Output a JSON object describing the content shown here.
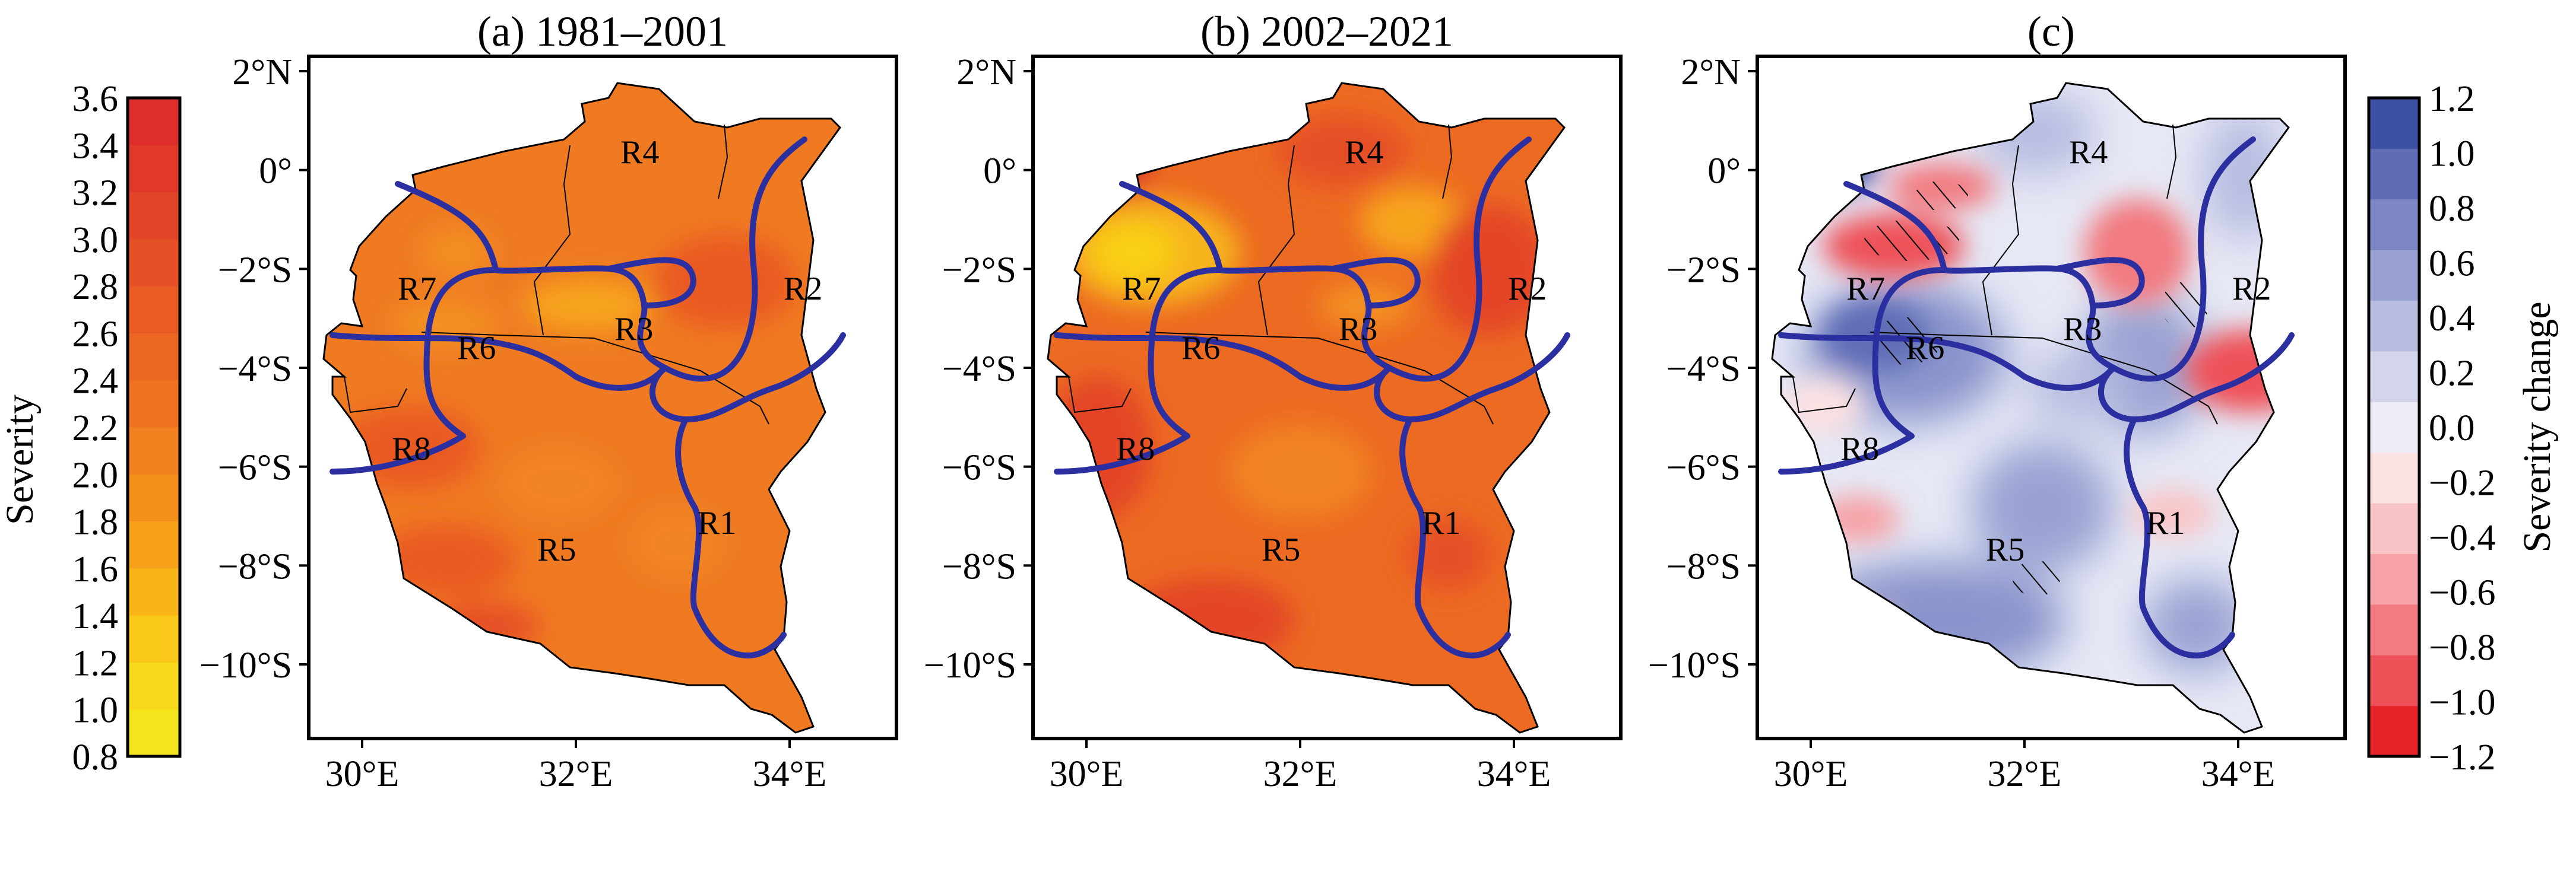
{
  "panels": [
    {
      "id": "a",
      "title": "(a) 1981–2001",
      "scale": "severity"
    },
    {
      "id": "b",
      "title": "(b) 2002–2021",
      "scale": "severity"
    },
    {
      "id": "c",
      "title": "(c)",
      "scale": "change"
    }
  ],
  "axes": {
    "lat_labels": [
      "2°N",
      "0°",
      "−2°S",
      "−4°S",
      "−6°S",
      "−8°S",
      "−10°S"
    ],
    "lat_values": [
      2,
      0,
      -2,
      -4,
      -6,
      -8,
      -10
    ],
    "lon_labels": [
      "30°E",
      "32°E",
      "34°E"
    ],
    "lon_values": [
      30,
      32,
      34
    ],
    "lon_range": [
      29.5,
      35.0
    ],
    "lat_range": [
      -11.5,
      2.3
    ]
  },
  "regions": [
    "R1",
    "R2",
    "R3",
    "R4",
    "R5",
    "R6",
    "R7",
    "R8"
  ],
  "colorbar_left": {
    "label": "Severity",
    "ticks": [
      "3.6",
      "3.4",
      "3.2",
      "3.0",
      "2.8",
      "2.6",
      "2.4",
      "2.2",
      "2.0",
      "1.8",
      "1.6",
      "1.4",
      "1.2",
      "1.0",
      "0.8"
    ],
    "colors": [
      "#f2e51c",
      "#f7d81a",
      "#f9c818",
      "#f9b418",
      "#f7a01a",
      "#f48f1c",
      "#f2801e",
      "#ef7220",
      "#ec6722",
      "#e95c24",
      "#e65026",
      "#e34528",
      "#e0392a",
      "#dd2e2c"
    ]
  },
  "colorbar_right": {
    "label": "Severity change",
    "ticks": [
      "1.2",
      "1.0",
      "0.8",
      "0.6",
      "0.4",
      "0.2",
      "0.0",
      "−0.2",
      "−0.4",
      "−0.6",
      "−0.8",
      "−1.0",
      "−1.2"
    ],
    "colors": [
      "#e8232a",
      "#ee5158",
      "#f27a80",
      "#f6a2a6",
      "#f9c4c6",
      "#fbe1e2",
      "#ededf7",
      "#d3d5ec",
      "#b7bce0",
      "#9aa2d3",
      "#7d87c5",
      "#5f6db6",
      "#3d4fa4"
    ]
  },
  "colors": {
    "severity_base": "#ef7a22",
    "severity_dark": "#e95a24",
    "severity_light": "#f7a41a",
    "change_base": "#e6e8f5",
    "change_blue": "#8a94cc",
    "change_red": "#f19a9e",
    "boundary_line": "#2b2fa0"
  }
}
